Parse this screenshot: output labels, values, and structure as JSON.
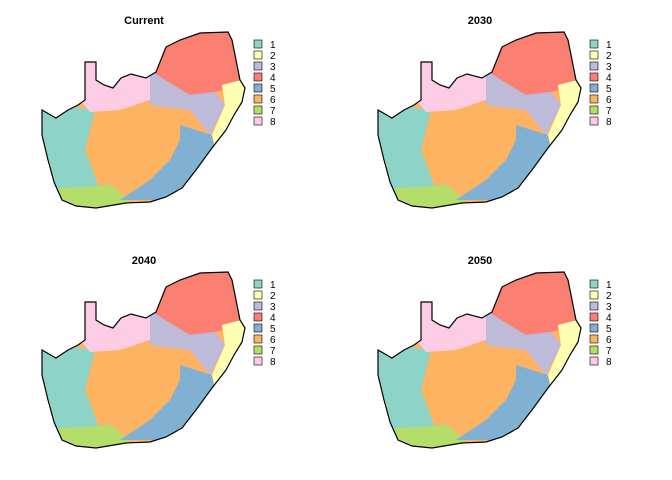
{
  "figure": {
    "panels": [
      {
        "title": "Current"
      },
      {
        "title": "2030"
      },
      {
        "title": "2040"
      },
      {
        "title": "2050"
      }
    ],
    "legend": {
      "items": [
        {
          "label": "1",
          "color": "#8DD3C7"
        },
        {
          "label": "2",
          "color": "#FFFFB3"
        },
        {
          "label": "3",
          "color": "#BEBADA"
        },
        {
          "label": "4",
          "color": "#FB8072"
        },
        {
          "label": "5",
          "color": "#80B1D3"
        },
        {
          "label": "6",
          "color": "#FDB462"
        },
        {
          "label": "7",
          "color": "#B3DE69"
        },
        {
          "label": "8",
          "color": "#FCCDE5"
        }
      ]
    }
  }
}
